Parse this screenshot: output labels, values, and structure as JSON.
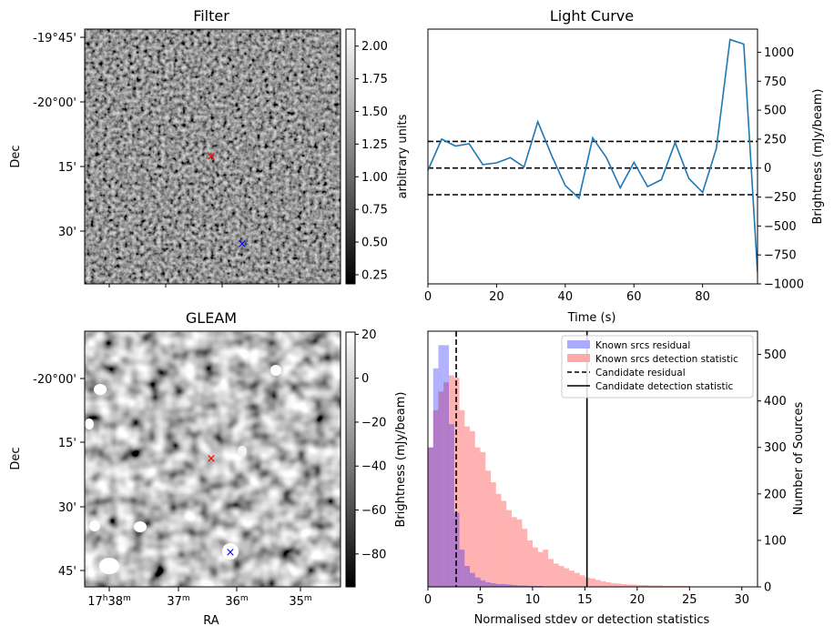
{
  "colors": {
    "series": "#1f77b4",
    "known_residual": "#aaaaff",
    "known_detection": "#ffaaaa",
    "overlap": "#c178b4"
  },
  "panels": {
    "filter": {
      "title": "Filter",
      "ylabel": "Dec",
      "yticks": [
        "-19°45'",
        "-20°00'",
        "15'",
        "30'"
      ],
      "colorbar": {
        "label": "arbitrary units",
        "ticks": [
          "2.00",
          "1.75",
          "1.50",
          "1.25",
          "1.00",
          "0.75",
          "0.50",
          "0.25"
        ],
        "range": [
          0.18,
          2.13
        ]
      },
      "markers": [
        {
          "color": "red",
          "symbol": "×"
        },
        {
          "color": "blue",
          "symbol": "×"
        }
      ]
    },
    "gleam": {
      "title": "GLEAM",
      "ylabel": "Dec",
      "xlabel": "RA",
      "yticks": [
        "-20°00'",
        "15'",
        "30'",
        "45'"
      ],
      "xticks": [
        "17h38m",
        "37m",
        "36m",
        "35m"
      ],
      "colorbar": {
        "label": "Brightness (mJy/beam)",
        "ticks": [
          "20",
          "0",
          "−20",
          "−40",
          "−60",
          "−80"
        ],
        "range": [
          -95,
          21
        ]
      },
      "markers": [
        {
          "color": "red",
          "symbol": "×"
        },
        {
          "color": "blue",
          "symbol": "×"
        }
      ]
    }
  },
  "chart_data": [
    {
      "type": "line",
      "title": "Light Curve",
      "xlabel": "Time (s)",
      "ylabel": "Brightness (mJy/beam)",
      "xlim": [
        0,
        96
      ],
      "ylim": [
        -1000,
        1200
      ],
      "xticks": [
        "0",
        "20",
        "40",
        "60",
        "80"
      ],
      "yticks": [
        "1000",
        "750",
        "500",
        "250",
        "0",
        "−250",
        "−500",
        "−750",
        "−1000"
      ],
      "hlines": [
        230,
        0,
        -230
      ],
      "x": [
        0,
        4,
        8,
        12,
        16,
        20,
        24,
        28,
        32,
        36,
        40,
        44,
        48,
        52,
        56,
        60,
        64,
        68,
        72,
        76,
        80,
        84,
        88,
        92,
        96
      ],
      "y": [
        -20,
        250,
        190,
        210,
        30,
        45,
        90,
        10,
        400,
        110,
        -150,
        -260,
        260,
        90,
        -170,
        50,
        -160,
        -100,
        220,
        -90,
        -210,
        170,
        1110,
        1070,
        -900
      ]
    },
    {
      "type": "bar",
      "title": "",
      "xlabel": "Normalised stdev or detection statistics",
      "ylabel": "Number of Sources",
      "xlim": [
        0,
        31.5
      ],
      "ylim": [
        0,
        550
      ],
      "xticks": [
        "0",
        "5",
        "10",
        "15",
        "20",
        "25",
        "30"
      ],
      "yticks": [
        "0",
        "100",
        "200",
        "300",
        "400",
        "500"
      ],
      "bin_width": 0.5,
      "legend": [
        {
          "label": "Known srcs residual",
          "style": "patch",
          "color": "#aaaaff"
        },
        {
          "label": "Known srcs detection statistic",
          "style": "patch",
          "color": "#ffaaaa"
        },
        {
          "label": "Candidate residual",
          "style": "dashed"
        },
        {
          "label": "Candidate detection statistic",
          "style": "solid"
        }
      ],
      "vlines": [
        {
          "name": "Candidate residual",
          "x": 2.7
        },
        {
          "name": "Candidate detection statistic",
          "x": 15.2
        }
      ],
      "series": [
        {
          "name": "Known srcs residual",
          "start": 0,
          "values": [
            300,
            470,
            520,
            520,
            350,
            160,
            80,
            45,
            30,
            20,
            14,
            10,
            8,
            6,
            6,
            5,
            4,
            3,
            3,
            2,
            2,
            2
          ]
        },
        {
          "name": "Known srcs detection statistic",
          "start": 0,
          "values": [
            300,
            380,
            420,
            440,
            455,
            450,
            380,
            345,
            335,
            300,
            290,
            250,
            225,
            200,
            185,
            165,
            150,
            145,
            125,
            100,
            85,
            75,
            80,
            60,
            50,
            45,
            40,
            35,
            30,
            25,
            20,
            18,
            15,
            12,
            10,
            8,
            7,
            6,
            5,
            5,
            4,
            4,
            3,
            3,
            3,
            2,
            2,
            2,
            2,
            2,
            1,
            1,
            1,
            1,
            1,
            1,
            1,
            1,
            1,
            1
          ]
        }
      ]
    }
  ]
}
